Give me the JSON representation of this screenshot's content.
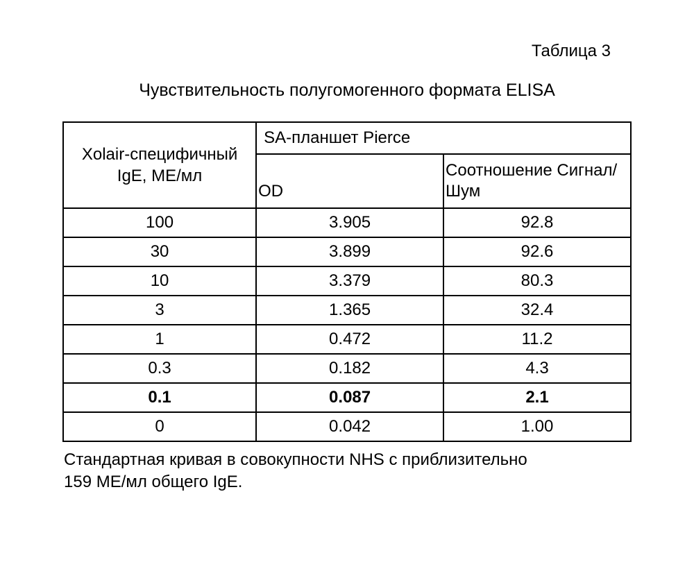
{
  "doc": {
    "table_number": "Таблица 3",
    "title": "Чувствительность полугомогенного формата ELISA",
    "footnote_l1": "Стандартная кривая в совокупности NHS с приблизительно",
    "footnote_l2": "159 МЕ/мл общего IgE."
  },
  "table": {
    "columns": {
      "col1_header": "Xolair-специфичный IgE, МЕ/мл",
      "group_header": "SA-планшет Pierce",
      "sub1": "OD",
      "sub2": "Соотношение Сигнал/Шум"
    },
    "col_widths_pct": [
      34,
      33,
      33
    ],
    "border_color": "#000000",
    "font_size_pt": 18,
    "rows": [
      {
        "ige": "100",
        "od": "3.905",
        "ratio": "92.8",
        "bold": false
      },
      {
        "ige": "30",
        "od": "3.899",
        "ratio": "92.6",
        "bold": false
      },
      {
        "ige": "10",
        "od": "3.379",
        "ratio": "80.3",
        "bold": false
      },
      {
        "ige": "3",
        "od": "1.365",
        "ratio": "32.4",
        "bold": false
      },
      {
        "ige": "1",
        "od": "0.472",
        "ratio": "11.2",
        "bold": false
      },
      {
        "ige": "0.3",
        "od": "0.182",
        "ratio": "4.3",
        "bold": false
      },
      {
        "ige": "0.1",
        "od": "0.087",
        "ratio": "2.1",
        "bold": true
      },
      {
        "ige": "0",
        "od": "0.042",
        "ratio": "1.00",
        "bold": false
      }
    ]
  },
  "style": {
    "background_color": "#ffffff",
    "text_color": "#000000",
    "title_fontsize_pt": 19,
    "body_fontsize_pt": 18
  }
}
